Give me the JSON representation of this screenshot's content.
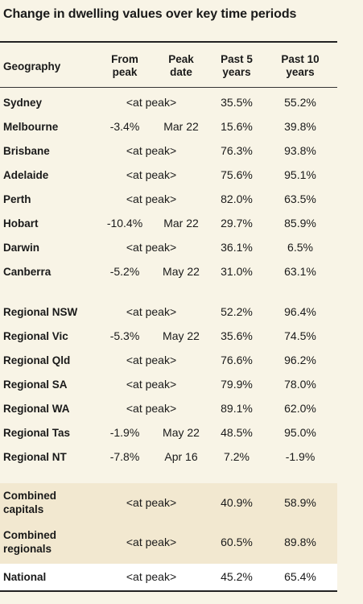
{
  "title": "Change in dwelling values over key time periods",
  "headers": {
    "geography": "Geography",
    "from_peak": [
      "From",
      "peak"
    ],
    "peak_date": [
      "Peak",
      "date"
    ],
    "past5": [
      "Past 5",
      "years"
    ],
    "past10": [
      "Past 10",
      "years"
    ]
  },
  "colors": {
    "background": "#f8f4e6",
    "combined_band": "#f2e8d0",
    "national_band": "#ffffff"
  },
  "capitals": [
    {
      "geo": "Sydney",
      "from": "",
      "date": "",
      "at_peak": "<at peak>",
      "p5": "35.5%",
      "p10": "55.2%"
    },
    {
      "geo": "Melbourne",
      "from": "-3.4%",
      "date": "Mar 22",
      "at_peak": "",
      "p5": "15.6%",
      "p10": "39.8%"
    },
    {
      "geo": "Brisbane",
      "from": "",
      "date": "",
      "at_peak": "<at peak>",
      "p5": "76.3%",
      "p10": "93.8%"
    },
    {
      "geo": "Adelaide",
      "from": "",
      "date": "",
      "at_peak": "<at peak>",
      "p5": "75.6%",
      "p10": "95.1%"
    },
    {
      "geo": "Perth",
      "from": "",
      "date": "",
      "at_peak": "<at peak>",
      "p5": "82.0%",
      "p10": "63.5%"
    },
    {
      "geo": "Hobart",
      "from": "-10.4%",
      "date": "Mar 22",
      "at_peak": "",
      "p5": "29.7%",
      "p10": "85.9%"
    },
    {
      "geo": "Darwin",
      "from": "",
      "date": "",
      "at_peak": "<at peak>",
      "p5": "36.1%",
      "p10": "6.5%"
    },
    {
      "geo": "Canberra",
      "from": "-5.2%",
      "date": "May 22",
      "at_peak": "",
      "p5": "31.0%",
      "p10": "63.1%"
    }
  ],
  "regionals": [
    {
      "geo": "Regional NSW",
      "from": "",
      "date": "",
      "at_peak": "<at peak>",
      "p5": "52.2%",
      "p10": "96.4%"
    },
    {
      "geo": "Regional Vic",
      "from": "-5.3%",
      "date": "May 22",
      "at_peak": "",
      "p5": "35.6%",
      "p10": "74.5%"
    },
    {
      "geo": "Regional Qld",
      "from": "",
      "date": "",
      "at_peak": "<at peak>",
      "p5": "76.6%",
      "p10": "96.2%"
    },
    {
      "geo": "Regional SA",
      "from": "",
      "date": "",
      "at_peak": "<at peak>",
      "p5": "79.9%",
      "p10": "78.0%"
    },
    {
      "geo": "Regional WA",
      "from": "",
      "date": "",
      "at_peak": "<at peak>",
      "p5": "89.1%",
      "p10": "62.0%"
    },
    {
      "geo": "Regional Tas",
      "from": "-1.9%",
      "date": "May 22",
      "at_peak": "",
      "p5": "48.5%",
      "p10": "95.0%"
    },
    {
      "geo": "Regional NT",
      "from": "-7.8%",
      "date": "Apr 16",
      "at_peak": "",
      "p5": "7.2%",
      "p10": "-1.9%"
    }
  ],
  "combined": [
    {
      "geo": [
        "Combined",
        "capitals"
      ],
      "at_peak": "<at peak>",
      "p5": "40.9%",
      "p10": "58.9%"
    },
    {
      "geo": [
        "Combined",
        "regionals"
      ],
      "at_peak": "<at peak>",
      "p5": "60.5%",
      "p10": "89.8%"
    }
  ],
  "national": {
    "geo": "National",
    "at_peak": "<at peak>",
    "p5": "45.2%",
    "p10": "65.4%"
  }
}
